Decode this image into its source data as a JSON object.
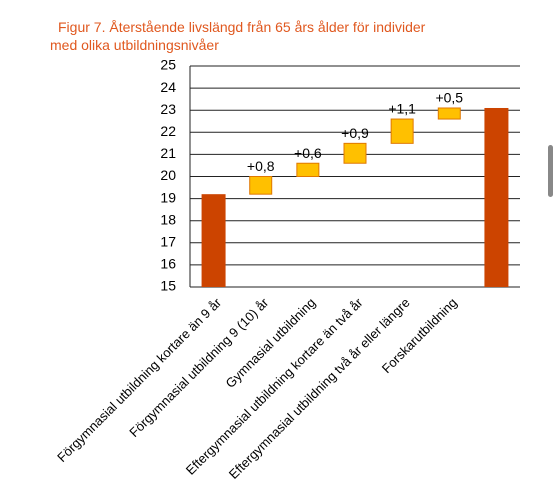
{
  "chart_data": {
    "type": "waterfall",
    "title": "Figur 7. Återstående livslängd från 65 års ålder för individer med olika utbildningsnivåer",
    "categories": [
      "Förgymnasial utbildning kortare än 9 år",
      "Förgymnasial utbildning 9 (10) år",
      "Gymnasial utbildning",
      "Eftergymnasial utbildning kortare än två år",
      "Eftergymnasial utbildning två år eller längre",
      "Forskarutbildning",
      null
    ],
    "values": [
      19.2,
      0.8,
      0.6,
      0.9,
      1.1,
      0.5,
      23.1
    ],
    "value_labels": [
      null,
      "+0,8",
      "+0,6",
      "+0,9",
      "+1,1",
      "+0,5",
      null
    ],
    "measure": [
      "absolute",
      "relative",
      "relative",
      "relative",
      "relative",
      "relative",
      "absolute"
    ],
    "total_color": "#cc4400",
    "increase_color": "#ffc000",
    "ylim": [
      15,
      25
    ],
    "yticks": [
      15,
      16,
      17,
      18,
      19,
      20,
      21,
      22,
      23,
      24,
      25
    ],
    "grid": true
  }
}
